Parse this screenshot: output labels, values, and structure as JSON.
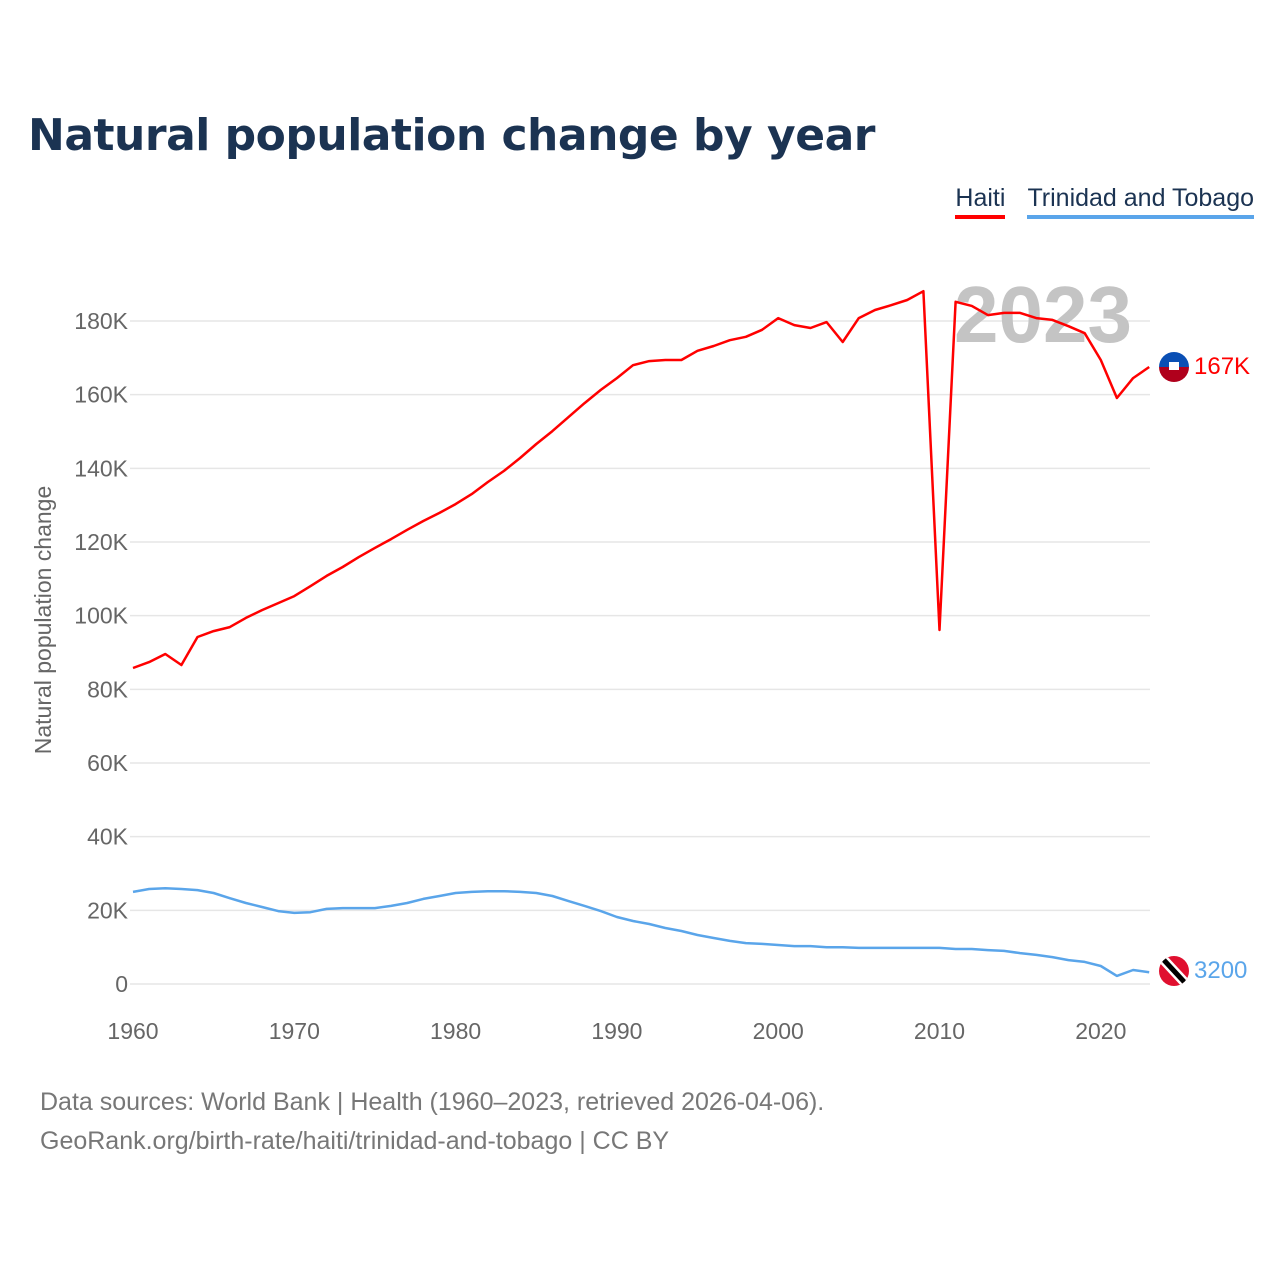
{
  "title": "Natural population change by year",
  "footer": {
    "line1": "Data sources: World Bank | Health (1960–2023, retrieved 2026-04-06).",
    "line2": "GeoRank.org/birth-rate/haiti/trinidad-and-tobago | CC BY"
  },
  "chart_data": {
    "type": "line",
    "title": "Natural population change by year",
    "xlabel": "",
    "ylabel": "Natural population change",
    "xlim": [
      1960,
      2023
    ],
    "ylim": [
      0,
      190000
    ],
    "x_ticks": [
      1960,
      1970,
      1980,
      1990,
      2000,
      2010,
      2020
    ],
    "x_tick_labels": [
      "1960",
      "1970",
      "1980",
      "1990",
      "2000",
      "2010",
      "2020"
    ],
    "y_ticks": [
      0,
      20000,
      40000,
      60000,
      80000,
      100000,
      120000,
      140000,
      160000,
      180000
    ],
    "y_tick_labels": [
      "0",
      "20K",
      "40K",
      "60K",
      "80K",
      "100K",
      "120K",
      "140K",
      "160K",
      "180K"
    ],
    "grid": true,
    "legend_position": "top-right",
    "year_label": "2023",
    "x": [
      1960,
      1961,
      1962,
      1963,
      1964,
      1965,
      1966,
      1967,
      1968,
      1969,
      1970,
      1971,
      1972,
      1973,
      1974,
      1975,
      1976,
      1977,
      1978,
      1979,
      1980,
      1981,
      1982,
      1983,
      1984,
      1985,
      1986,
      1987,
      1988,
      1989,
      1990,
      1991,
      1992,
      1993,
      1994,
      1995,
      1996,
      1997,
      1998,
      1999,
      2000,
      2001,
      2002,
      2003,
      2004,
      2005,
      2006,
      2007,
      2008,
      2009,
      2010,
      2011,
      2012,
      2013,
      2014,
      2015,
      2016,
      2017,
      2018,
      2019,
      2020,
      2021,
      2022,
      2023
    ],
    "series": [
      {
        "name": "Haiti",
        "color": "#ff0000",
        "end_label": "167K",
        "values": [
          85800,
          87400,
          89600,
          86600,
          94200,
          95800,
          96900,
          99400,
          101500,
          103400,
          105300,
          108000,
          110800,
          113200,
          115900,
          118400,
          120800,
          123300,
          125700,
          127900,
          130300,
          133000,
          136300,
          139300,
          142800,
          146600,
          150100,
          153900,
          157700,
          161300,
          164500,
          168000,
          169100,
          169400,
          169400,
          171900,
          173200,
          174800,
          175700,
          177600,
          180800,
          178900,
          178100,
          179700,
          174300,
          180800,
          183000,
          184300,
          185700,
          188100,
          96100,
          185200,
          184100,
          181600,
          182200,
          182200,
          180800,
          180300,
          178600,
          176700,
          169400,
          159100,
          164500,
          167500
        ]
      },
      {
        "name": "Trinidad and Tobago",
        "color": "#5aa5ea",
        "end_label": "3200",
        "values": [
          25000,
          25800,
          26000,
          25800,
          25500,
          24700,
          23300,
          22000,
          20900,
          19800,
          19300,
          19500,
          20400,
          20600,
          20600,
          20600,
          21200,
          22000,
          23100,
          23900,
          24700,
          25000,
          25200,
          25200,
          25000,
          24700,
          23900,
          22500,
          21200,
          19800,
          18200,
          17100,
          16300,
          15200,
          14400,
          13300,
          12500,
          11700,
          11100,
          10900,
          10600,
          10300,
          10300,
          10000,
          10000,
          9800,
          9800,
          9800,
          9800,
          9800,
          9800,
          9500,
          9500,
          9200,
          9000,
          8400,
          7900,
          7300,
          6500,
          6000,
          4900,
          2200,
          3800,
          3200
        ]
      }
    ]
  }
}
